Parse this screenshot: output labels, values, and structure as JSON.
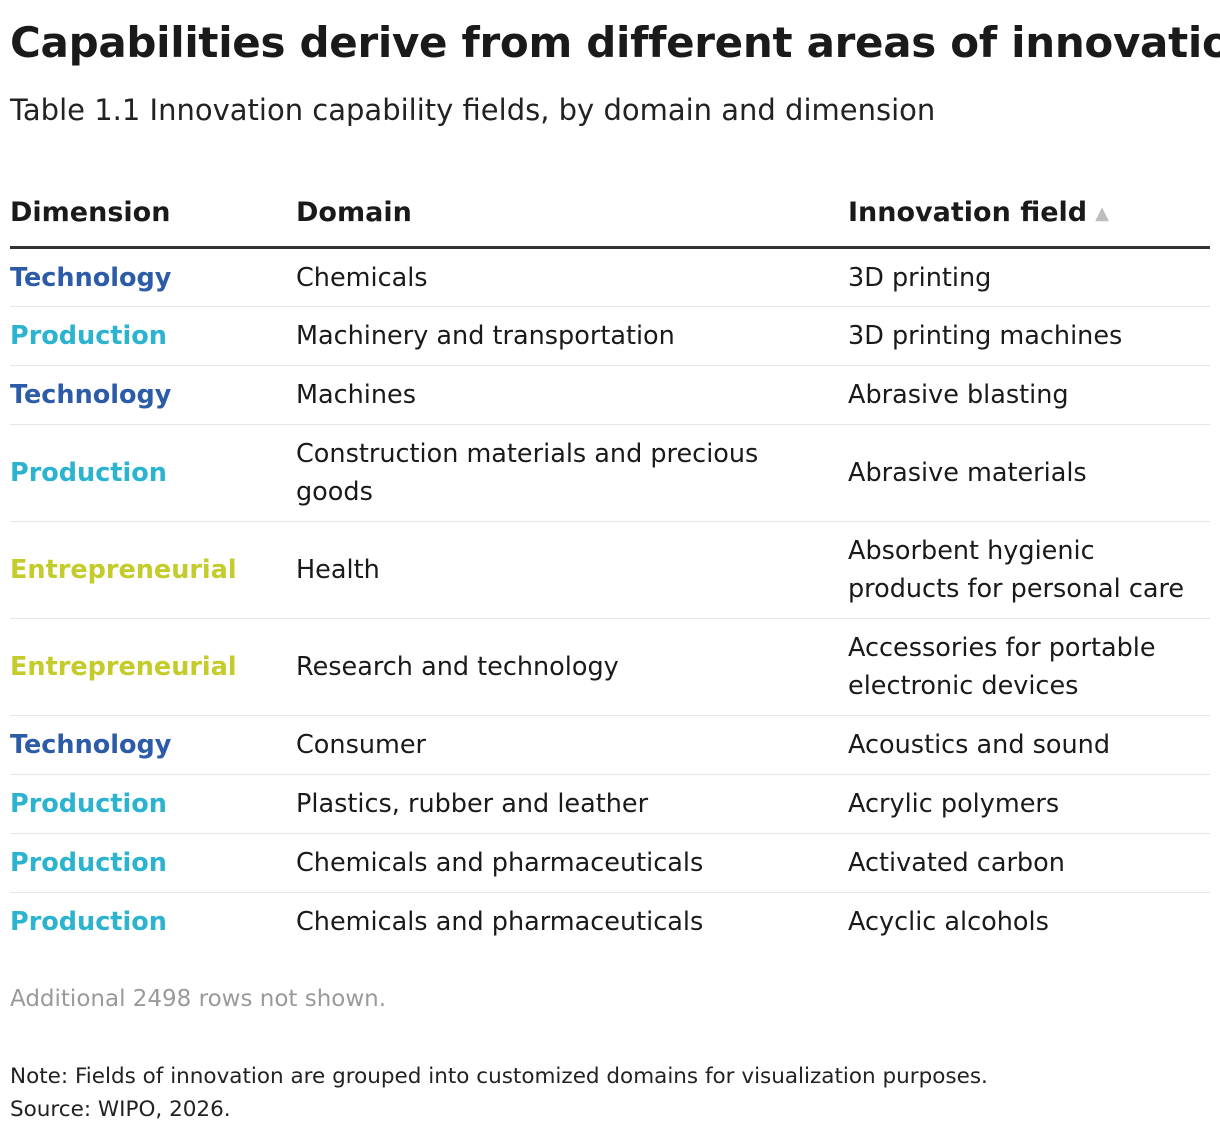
{
  "title": "Capabilities derive from different areas of innovation",
  "subtitle": "Table 1.1 Innovation capability fields, by domain and dimension",
  "colors": {
    "Technology": "#2c5ca8",
    "Production": "#2bb3d0",
    "Entrepreneurial": "#c3cc2a"
  },
  "table": {
    "columns": [
      "Dimension",
      "Domain",
      "Innovation field"
    ],
    "sort_indicator": "▲",
    "rows": [
      [
        "Technology",
        "Chemicals",
        "3D printing"
      ],
      [
        "Production",
        "Machinery and transportation",
        "3D printing machines"
      ],
      [
        "Technology",
        "Machines",
        "Abrasive blasting"
      ],
      [
        "Production",
        "Construction materials and precious goods",
        "Abrasive materials"
      ],
      [
        "Entrepreneurial",
        "Health",
        "Absorbent hygienic products for personal care"
      ],
      [
        "Entrepreneurial",
        "Research and technology",
        "Accessories for portable electronic devices"
      ],
      [
        "Technology",
        "Consumer",
        "Acoustics and sound"
      ],
      [
        "Production",
        "Plastics, rubber and leather",
        "Acrylic polymers"
      ],
      [
        "Production",
        "Chemicals and pharmaceuticals",
        "Activated carbon"
      ],
      [
        "Production",
        "Chemicals and pharmaceuticals",
        "Acyclic alcohols"
      ]
    ]
  },
  "footer": {
    "rows_not_shown": "Additional 2498 rows not shown.",
    "note": "Note: Fields of innovation are grouped into customized domains for visualization purposes.",
    "source": "Source: WIPO, 2026."
  }
}
